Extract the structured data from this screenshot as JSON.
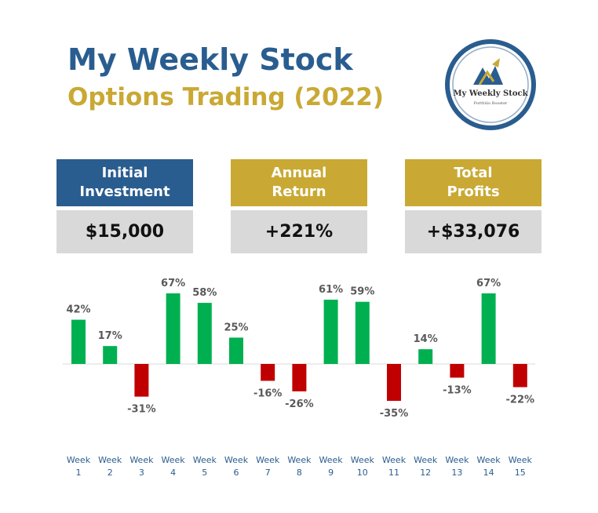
{
  "header": {
    "title_line1": "My Weekly Stock",
    "title_line2": "Options Trading (2022)"
  },
  "logo": {
    "text": "My Weekly Stock",
    "subtext": "Portfolio Booster",
    "ring_color": "#2A5D8F",
    "accent_color": "#C9A934"
  },
  "cards": [
    {
      "label_line1": "Initial",
      "label_line2": "Investment",
      "value": "$15,000",
      "color": "#2A5D8F"
    },
    {
      "label_line1": "Annual",
      "label_line2": "Return",
      "value": "+221%",
      "color": "#C9A934"
    },
    {
      "label_line1": "Total",
      "label_line2": "Profits",
      "value": "+$33,076",
      "color": "#C9A934"
    }
  ],
  "chart_data": {
    "type": "bar",
    "categories": [
      "Week 1",
      "Week 2",
      "Week 3",
      "Week 4",
      "Week 5",
      "Week 6",
      "Week 7",
      "Week 8",
      "Week 9",
      "Week 10",
      "Week 11",
      "Week 12",
      "Week 13",
      "Week 14",
      "Week 15"
    ],
    "values": [
      42,
      17,
      -31,
      67,
      58,
      25,
      -16,
      -26,
      61,
      59,
      -35,
      14,
      -13,
      67,
      -22
    ],
    "data_labels": [
      "42%",
      "17%",
      "-31%",
      "67%",
      "58%",
      "25%",
      "-16%",
      "-26%",
      "61%",
      "59%",
      "-35%",
      "14%",
      "-13%",
      "67%",
      "-22%"
    ],
    "value_unit": "%",
    "positive_color": "#00B050",
    "negative_color": "#C00000",
    "grid": false,
    "legend": "none"
  }
}
